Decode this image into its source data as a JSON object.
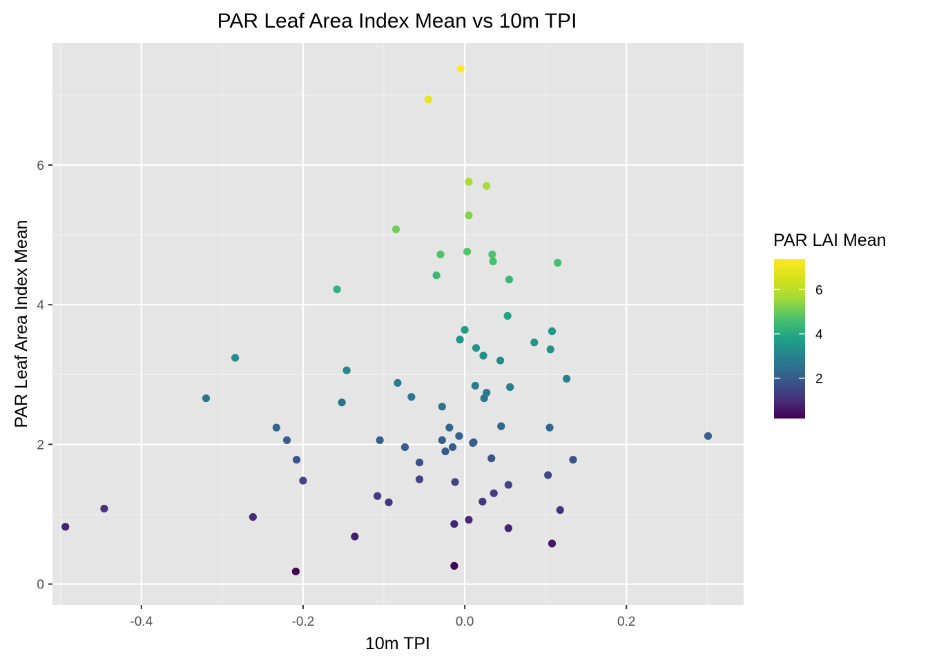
{
  "chart_data": {
    "type": "scatter",
    "title": "PAR Leaf Area Index Mean vs 10m TPI",
    "xlabel": "10m TPI",
    "ylabel": "PAR Leaf Area Index Mean",
    "xlim": [
      -0.51,
      0.345
    ],
    "ylim": [
      -0.3,
      7.75
    ],
    "x_ticks": [
      -0.4,
      -0.2,
      0.0,
      0.2
    ],
    "x_tick_labels": [
      "-0.4",
      "-0.2",
      "0.0",
      "0.2"
    ],
    "y_ticks": [
      0,
      2,
      4,
      6
    ],
    "y_tick_labels": [
      "0",
      "2",
      "4",
      "6"
    ],
    "grid": true,
    "legend": {
      "title": "PAR LAI Mean",
      "position": "right",
      "type": "colorbar",
      "range": [
        0.18,
        7.38
      ],
      "ticks": [
        2,
        4,
        6
      ],
      "tick_labels": [
        "2",
        "4",
        "6"
      ],
      "palette": "viridis"
    },
    "colors": {
      "panel_background": "#e5e5e5",
      "grid_major": "#ffffff",
      "grid_minor": "#f2f2f2",
      "tick_text": "#4d4d4d"
    },
    "series": [
      {
        "points": [
          {
            "x": -0.005,
            "y": 7.38
          },
          {
            "x": -0.045,
            "y": 6.94
          },
          {
            "x": 0.005,
            "y": 5.76
          },
          {
            "x": 0.027,
            "y": 5.7
          },
          {
            "x": 0.005,
            "y": 5.28
          },
          {
            "x": -0.085,
            "y": 5.08
          },
          {
            "x": -0.03,
            "y": 4.72
          },
          {
            "x": 0.003,
            "y": 4.76
          },
          {
            "x": 0.034,
            "y": 4.72
          },
          {
            "x": 0.035,
            "y": 4.62
          },
          {
            "x": 0.115,
            "y": 4.6
          },
          {
            "x": -0.035,
            "y": 4.42
          },
          {
            "x": 0.055,
            "y": 4.36
          },
          {
            "x": -0.158,
            "y": 4.22
          },
          {
            "x": 0.053,
            "y": 3.84
          },
          {
            "x": 0.0,
            "y": 3.64
          },
          {
            "x": 0.108,
            "y": 3.62
          },
          {
            "x": -0.006,
            "y": 3.5
          },
          {
            "x": 0.086,
            "y": 3.46
          },
          {
            "x": 0.014,
            "y": 3.38
          },
          {
            "x": 0.106,
            "y": 3.36
          },
          {
            "x": 0.023,
            "y": 3.27
          },
          {
            "x": -0.284,
            "y": 3.24
          },
          {
            "x": 0.044,
            "y": 3.2
          },
          {
            "x": -0.146,
            "y": 3.06
          },
          {
            "x": 0.126,
            "y": 2.94
          },
          {
            "x": -0.083,
            "y": 2.88
          },
          {
            "x": 0.013,
            "y": 2.84
          },
          {
            "x": 0.056,
            "y": 2.82
          },
          {
            "x": 0.027,
            "y": 2.74
          },
          {
            "x": -0.066,
            "y": 2.68
          },
          {
            "x": 0.024,
            "y": 2.66
          },
          {
            "x": -0.32,
            "y": 2.66
          },
          {
            "x": -0.152,
            "y": 2.6
          },
          {
            "x": -0.028,
            "y": 2.54
          },
          {
            "x": 0.045,
            "y": 2.26
          },
          {
            "x": -0.233,
            "y": 2.24
          },
          {
            "x": -0.019,
            "y": 2.24
          },
          {
            "x": 0.105,
            "y": 2.24
          },
          {
            "x": 0.301,
            "y": 2.12
          },
          {
            "x": -0.007,
            "y": 2.12
          },
          {
            "x": -0.105,
            "y": 2.06
          },
          {
            "x": -0.028,
            "y": 2.06
          },
          {
            "x": -0.22,
            "y": 2.06
          },
          {
            "x": 0.011,
            "y": 2.03
          },
          {
            "x": 0.01,
            "y": 2.02
          },
          {
            "x": -0.015,
            "y": 1.96
          },
          {
            "x": -0.074,
            "y": 1.96
          },
          {
            "x": -0.024,
            "y": 1.9
          },
          {
            "x": 0.033,
            "y": 1.8
          },
          {
            "x": -0.208,
            "y": 1.78
          },
          {
            "x": 0.134,
            "y": 1.78
          },
          {
            "x": -0.056,
            "y": 1.74
          },
          {
            "x": 0.103,
            "y": 1.56
          },
          {
            "x": -0.056,
            "y": 1.5
          },
          {
            "x": -0.2,
            "y": 1.48
          },
          {
            "x": -0.012,
            "y": 1.46
          },
          {
            "x": 0.054,
            "y": 1.42
          },
          {
            "x": 0.036,
            "y": 1.3
          },
          {
            "x": -0.108,
            "y": 1.26
          },
          {
            "x": -0.094,
            "y": 1.17
          },
          {
            "x": 0.022,
            "y": 1.18
          },
          {
            "x": -0.446,
            "y": 1.08
          },
          {
            "x": 0.118,
            "y": 1.06
          },
          {
            "x": -0.262,
            "y": 0.96
          },
          {
            "x": 0.005,
            "y": 0.92
          },
          {
            "x": -0.013,
            "y": 0.86
          },
          {
            "x": -0.494,
            "y": 0.82
          },
          {
            "x": 0.054,
            "y": 0.8
          },
          {
            "x": -0.136,
            "y": 0.68
          },
          {
            "x": 0.108,
            "y": 0.58
          },
          {
            "x": -0.013,
            "y": 0.26
          },
          {
            "x": -0.209,
            "y": 0.18
          }
        ]
      }
    ]
  }
}
